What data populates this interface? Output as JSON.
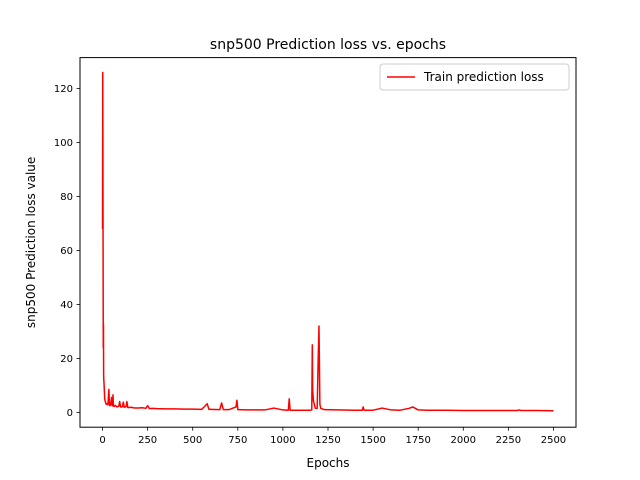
{
  "chart_data": {
    "type": "line",
    "title": "snp500 Prediction loss vs. epochs",
    "xlabel": "Epochs",
    "ylabel": "snp500 Prediction loss value",
    "xlim": [
      -125,
      2625
    ],
    "ylim": [
      -5.5,
      131.5
    ],
    "xticks": [
      0,
      250,
      500,
      750,
      1000,
      1250,
      1500,
      1750,
      2000,
      2250,
      2500
    ],
    "yticks": [
      0,
      20,
      40,
      60,
      80,
      100,
      120
    ],
    "grid": false,
    "legend": {
      "placement": "top-right"
    },
    "series": [
      {
        "name": "Train prediction loss",
        "color": "#ff0000",
        "x": [
          0,
          1,
          2,
          3,
          4,
          5,
          6,
          7,
          8,
          10,
          12,
          15,
          18,
          20,
          25,
          30,
          35,
          38,
          40,
          45,
          50,
          55,
          58,
          60,
          65,
          70,
          80,
          90,
          95,
          100,
          110,
          115,
          120,
          130,
          135,
          140,
          150,
          160,
          170,
          180,
          200,
          220,
          240,
          250,
          260,
          280,
          300,
          350,
          400,
          450,
          500,
          550,
          580,
          590,
          600,
          650,
          660,
          670,
          700,
          740,
          745,
          750,
          800,
          900,
          950,
          1000,
          1030,
          1035,
          1040,
          1100,
          1150,
          1160,
          1163,
          1165,
          1170,
          1180,
          1190,
          1195,
          1200,
          1205,
          1210,
          1230,
          1300,
          1400,
          1440,
          1445,
          1450,
          1500,
          1550,
          1600,
          1650,
          1700,
          1720,
          1750,
          1800,
          1900,
          2000,
          2100,
          2200,
          2300,
          2310,
          2320,
          2400,
          2500
        ],
        "y": [
          68,
          126,
          95,
          60,
          24,
          33,
          14,
          12,
          11,
          8,
          5,
          4,
          3.5,
          3,
          3.2,
          2.8,
          8.5,
          3.5,
          2.5,
          2.6,
          5.5,
          2.4,
          6.5,
          2.4,
          2.2,
          2.6,
          2,
          2.3,
          4,
          2,
          2.1,
          3.8,
          1.9,
          2.1,
          4,
          1.8,
          1.8,
          1.9,
          1.7,
          1.6,
          1.6,
          1.7,
          1.5,
          2.5,
          1.4,
          1.5,
          1.4,
          1.3,
          1.3,
          1.2,
          1.2,
          1.1,
          3.2,
          1.1,
          1.1,
          1,
          3.5,
          1,
          1,
          2,
          4.5,
          1,
          0.9,
          0.9,
          1.6,
          0.9,
          0.8,
          5,
          0.8,
          0.8,
          0.8,
          0.9,
          25,
          8,
          4,
          1.5,
          1.5,
          18,
          32,
          3,
          1.5,
          1,
          0.9,
          0.8,
          0.8,
          2,
          0.8,
          0.8,
          1.6,
          0.9,
          0.8,
          1.5,
          2,
          0.9,
          0.8,
          0.8,
          0.7,
          0.7,
          0.7,
          0.7,
          0.9,
          0.7,
          0.7,
          0.6
        ]
      }
    ]
  }
}
